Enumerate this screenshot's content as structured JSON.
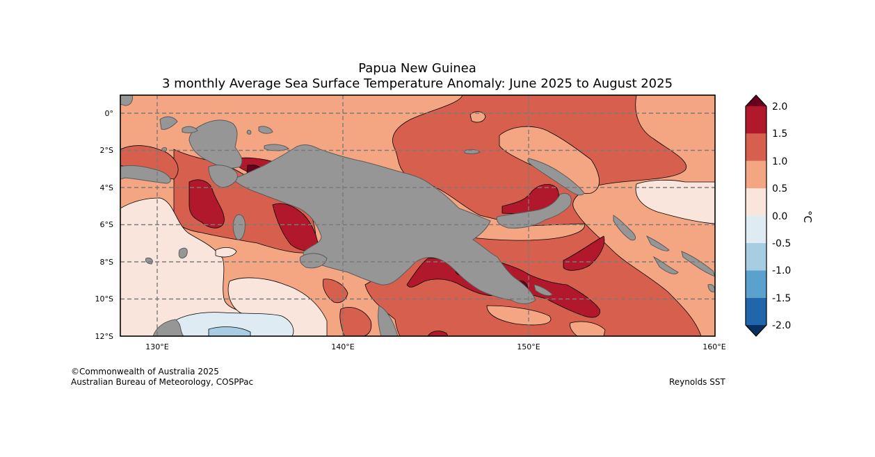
{
  "title": {
    "line1": "Papua New Guinea",
    "line2": "3 monthly Average Sea Surface Temperature Anomaly: June 2025 to August 2025"
  },
  "axes": {
    "lat_labels": [
      "0°",
      "2°S",
      "4°S",
      "6°S",
      "8°S",
      "10°S",
      "12°S"
    ],
    "lon_labels": [
      "130°E",
      "140°E",
      "150°E",
      "160°E"
    ]
  },
  "colorbar": {
    "unit": "°C",
    "tick_labels": [
      "2.0",
      "1.5",
      "1.0",
      "0.5",
      "0.0",
      "-0.5",
      "-1.0",
      "-1.5",
      "-2.0"
    ],
    "colors": {
      "over": "#67001f",
      "b_1_5_2_0": "#b2182b",
      "b_1_0_1_5": "#d6604d",
      "b_0_5_1_0": "#f4a582",
      "b_0_0_0_5": "#f9e5dc",
      "b_m0_5_0_0": "#deebf2",
      "b_m1_0_m0_5": "#a7cde2",
      "b_m1_5_m1_0": "#5aa1cd",
      "b_m2_0_m1_5": "#2166ac",
      "under": "#053061"
    }
  },
  "map": {
    "land_color": "#969696",
    "coast_color": "#5a5a5a"
  },
  "footer": {
    "copyright": "©Commonwealth of Australia 2025",
    "organisation": "Australian Bureau of Meteorology, COSPPac",
    "source": "Reynolds SST"
  }
}
